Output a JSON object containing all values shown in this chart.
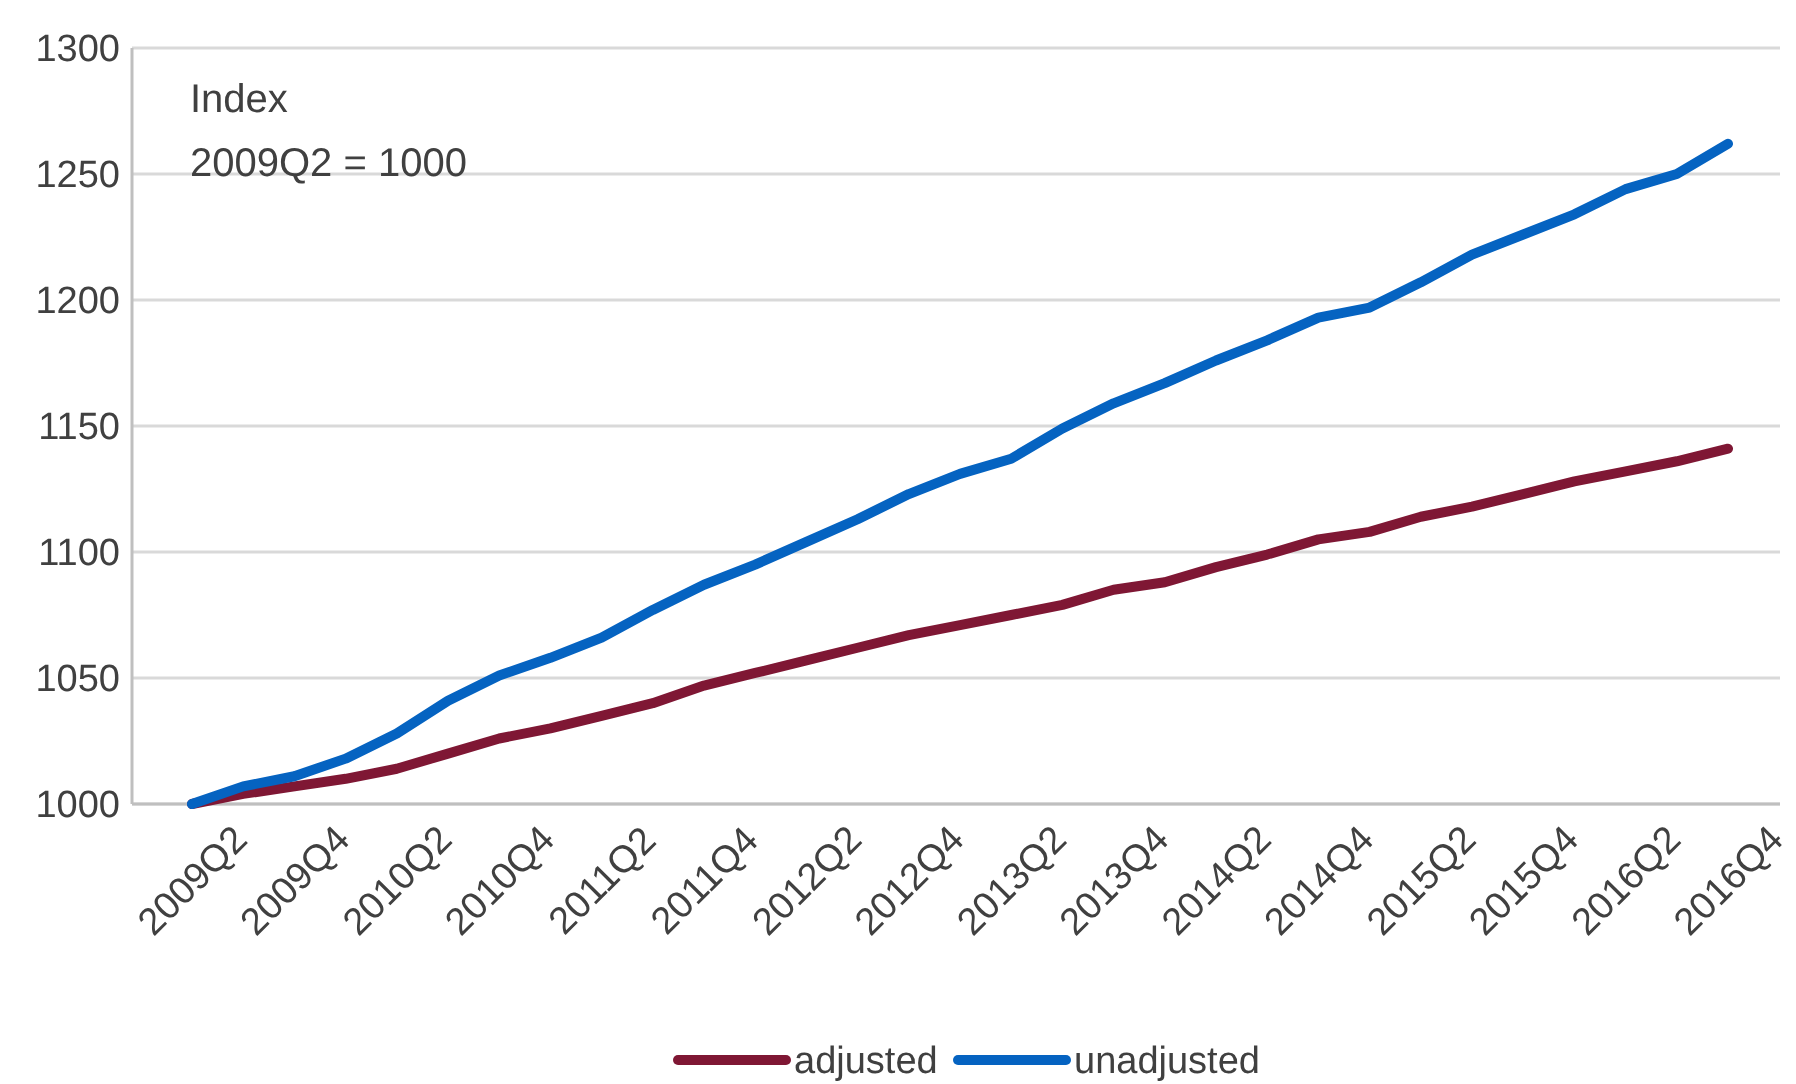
{
  "chart_data": {
    "type": "line",
    "categories": [
      "2009Q2",
      null,
      "2009Q4",
      null,
      "2010Q2",
      null,
      "2010Q4",
      null,
      "2011Q2",
      null,
      "2011Q4",
      null,
      "2012Q2",
      null,
      "2012Q4",
      null,
      "2013Q2",
      null,
      "2013Q4",
      null,
      "2014Q2",
      null,
      "2014Q4",
      null,
      "2015Q2",
      null,
      "2015Q4",
      null,
      "2016Q2",
      null,
      "2016Q4"
    ],
    "series": [
      {
        "name": "adjusted",
        "color": "#7f1734",
        "values": [
          1000,
          1004,
          1007,
          1010,
          1014,
          1020,
          1026,
          1030,
          1035,
          1040,
          1047,
          1052,
          1057,
          1062,
          1067,
          1071,
          1075,
          1079,
          1085,
          1088,
          1094,
          1099,
          1105,
          1108,
          1114,
          1118,
          1123,
          1128,
          1132,
          1136,
          1141
        ]
      },
      {
        "name": "unadjusted",
        "color": "#0563c1",
        "values": [
          1000,
          1007,
          1011,
          1018,
          1028,
          1041,
          1051,
          1058,
          1066,
          1077,
          1087,
          1095,
          1104,
          1113,
          1123,
          1131,
          1137,
          1149,
          1159,
          1167,
          1176,
          1184,
          1193,
          1197,
          1207,
          1218,
          1226,
          1234,
          1244,
          1250,
          1262
        ]
      }
    ],
    "ylim": [
      1000,
      1300
    ],
    "yticks": [
      1000,
      1050,
      1100,
      1150,
      1200,
      1250,
      1300
    ],
    "grid": "y",
    "legend": "bottom",
    "marker": "none",
    "line_style": "solid",
    "annotations": [
      "Index",
      "2009Q2 = 1000"
    ]
  }
}
